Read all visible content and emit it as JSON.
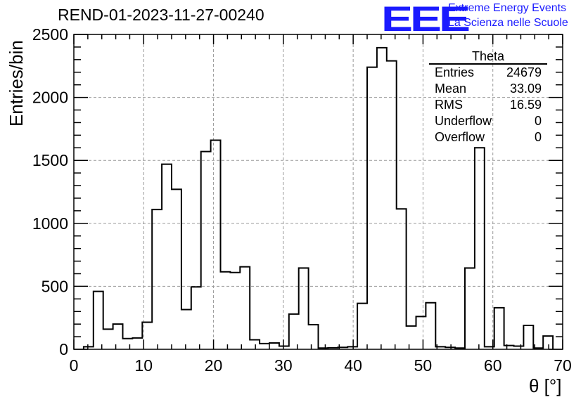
{
  "chart_data": {
    "type": "bar",
    "title": "REND-01-2023-11-27-00240",
    "xlabel": "θ [°]",
    "ylabel": "Entries/bin",
    "xlim": [
      0,
      70
    ],
    "ylim": [
      0,
      2500
    ],
    "xticks": [
      "0",
      "10",
      "20",
      "30",
      "40",
      "50",
      "60",
      "70"
    ],
    "yticks": [
      "0",
      "500",
      "1000",
      "1500",
      "2000",
      "2500"
    ],
    "grid": true,
    "bin_width": 1.4,
    "bin_start": 1.4,
    "values": [
      20,
      460,
      160,
      200,
      85,
      90,
      215,
      1110,
      1470,
      1270,
      315,
      495,
      1570,
      1660,
      615,
      610,
      655,
      75,
      45,
      50,
      25,
      280,
      645,
      195,
      10,
      12,
      15,
      20,
      365,
      2240,
      2395,
      2290,
      1115,
      185,
      260,
      370,
      20,
      15,
      10,
      645,
      1600,
      20,
      330,
      30,
      25,
      190,
      10,
      105
    ]
  },
  "logo": {
    "text": "EEE",
    "line1": "Extreme Energy Events",
    "line2": "La Scienza nelle Scuole",
    "color": "#1a1aff"
  },
  "stats": {
    "title": "Theta",
    "rows": [
      {
        "label": "Entries",
        "value": "24679"
      },
      {
        "label": "Mean",
        "value": "33.09"
      },
      {
        "label": "RMS",
        "value": "16.59"
      },
      {
        "label": "Underflow",
        "value": "0"
      },
      {
        "label": "Overflow",
        "value": "0"
      }
    ]
  }
}
